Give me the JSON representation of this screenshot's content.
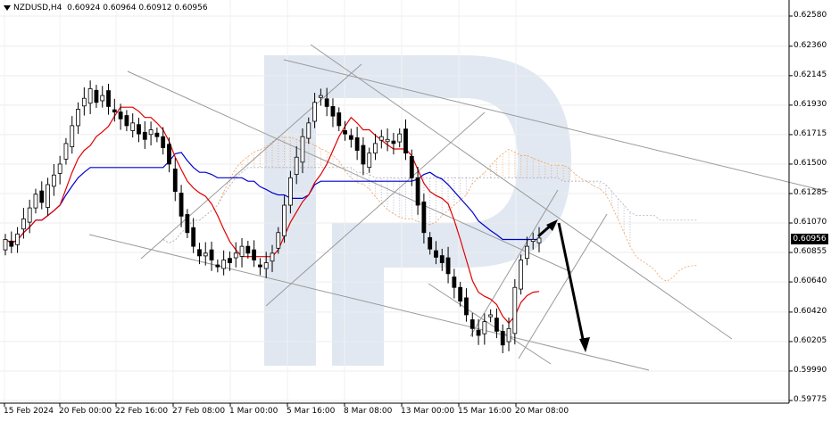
{
  "header": {
    "symbol": "NZDUSD,H4",
    "ohlc": "0.60924 0.60964 0.60912 0.60956"
  },
  "current_price": "0.60956",
  "chart_data": {
    "type": "candlestick",
    "symbol": "NZDUSD",
    "timeframe": "H4",
    "y_ticks": [
      "0.62580",
      "0.62360",
      "0.62145",
      "0.61930",
      "0.61715",
      "0.61500",
      "0.61285",
      "0.61070",
      "0.60855",
      "0.60640",
      "0.60420",
      "0.60205",
      "0.59990",
      "0.59775"
    ],
    "x_ticks": [
      "15 Feb 2024",
      "20 Feb 00:00",
      "22 Feb 16:00",
      "27 Feb 08:00",
      "1 Mar 00:00",
      "5 Mar 16:00",
      "8 Mar 08:00",
      "13 Mar 00:00",
      "15 Mar 16:00",
      "20 Mar 08:00"
    ],
    "ylim": [
      0.5977,
      0.6266
    ],
    "grid": true,
    "indicators": [
      "Tenkan-sen (red)",
      "Kijun-sen (blue)",
      "Ichimoku Cloud (orange/grey)"
    ],
    "price_path": [
      0.6095,
      0.609,
      0.6099,
      0.611,
      0.6118,
      0.6128,
      0.6122,
      0.6135,
      0.6142,
      0.615,
      0.6165,
      0.6178,
      0.619,
      0.6198,
      0.6205,
      0.6195,
      0.62,
      0.6192,
      0.6188,
      0.6183,
      0.6178,
      0.618,
      0.6172,
      0.6168,
      0.6175,
      0.617,
      0.6162,
      0.615,
      0.613,
      0.6112,
      0.61,
      0.609,
      0.6083,
      0.6085,
      0.608,
      0.6075,
      0.608,
      0.6078,
      0.6085,
      0.609,
      0.6085,
      0.608,
      0.6075,
      0.6078,
      0.6085,
      0.61,
      0.612,
      0.614,
      0.6155,
      0.617,
      0.618,
      0.6195,
      0.62,
      0.6192,
      0.6185,
      0.6178,
      0.6172,
      0.6168,
      0.616,
      0.615,
      0.6158,
      0.6165,
      0.617,
      0.6168,
      0.6165,
      0.6172,
      0.6158,
      0.614,
      0.612,
      0.61,
      0.6088,
      0.6082,
      0.6078,
      0.607,
      0.606,
      0.605,
      0.604,
      0.603,
      0.6025,
      0.6035,
      0.604,
      0.6028,
      0.6018,
      0.603,
      0.606,
      0.608,
      0.609,
      0.6095,
      0.6096
    ],
    "annotation_arrows": [
      {
        "from": [
          0.6095,
          "20 Mar"
        ],
        "to": [
          0.611,
          "21 Mar"
        ]
      },
      {
        "from": [
          0.611,
          "21 Mar"
        ],
        "to": [
          0.602,
          "22 Mar"
        ]
      }
    ]
  }
}
